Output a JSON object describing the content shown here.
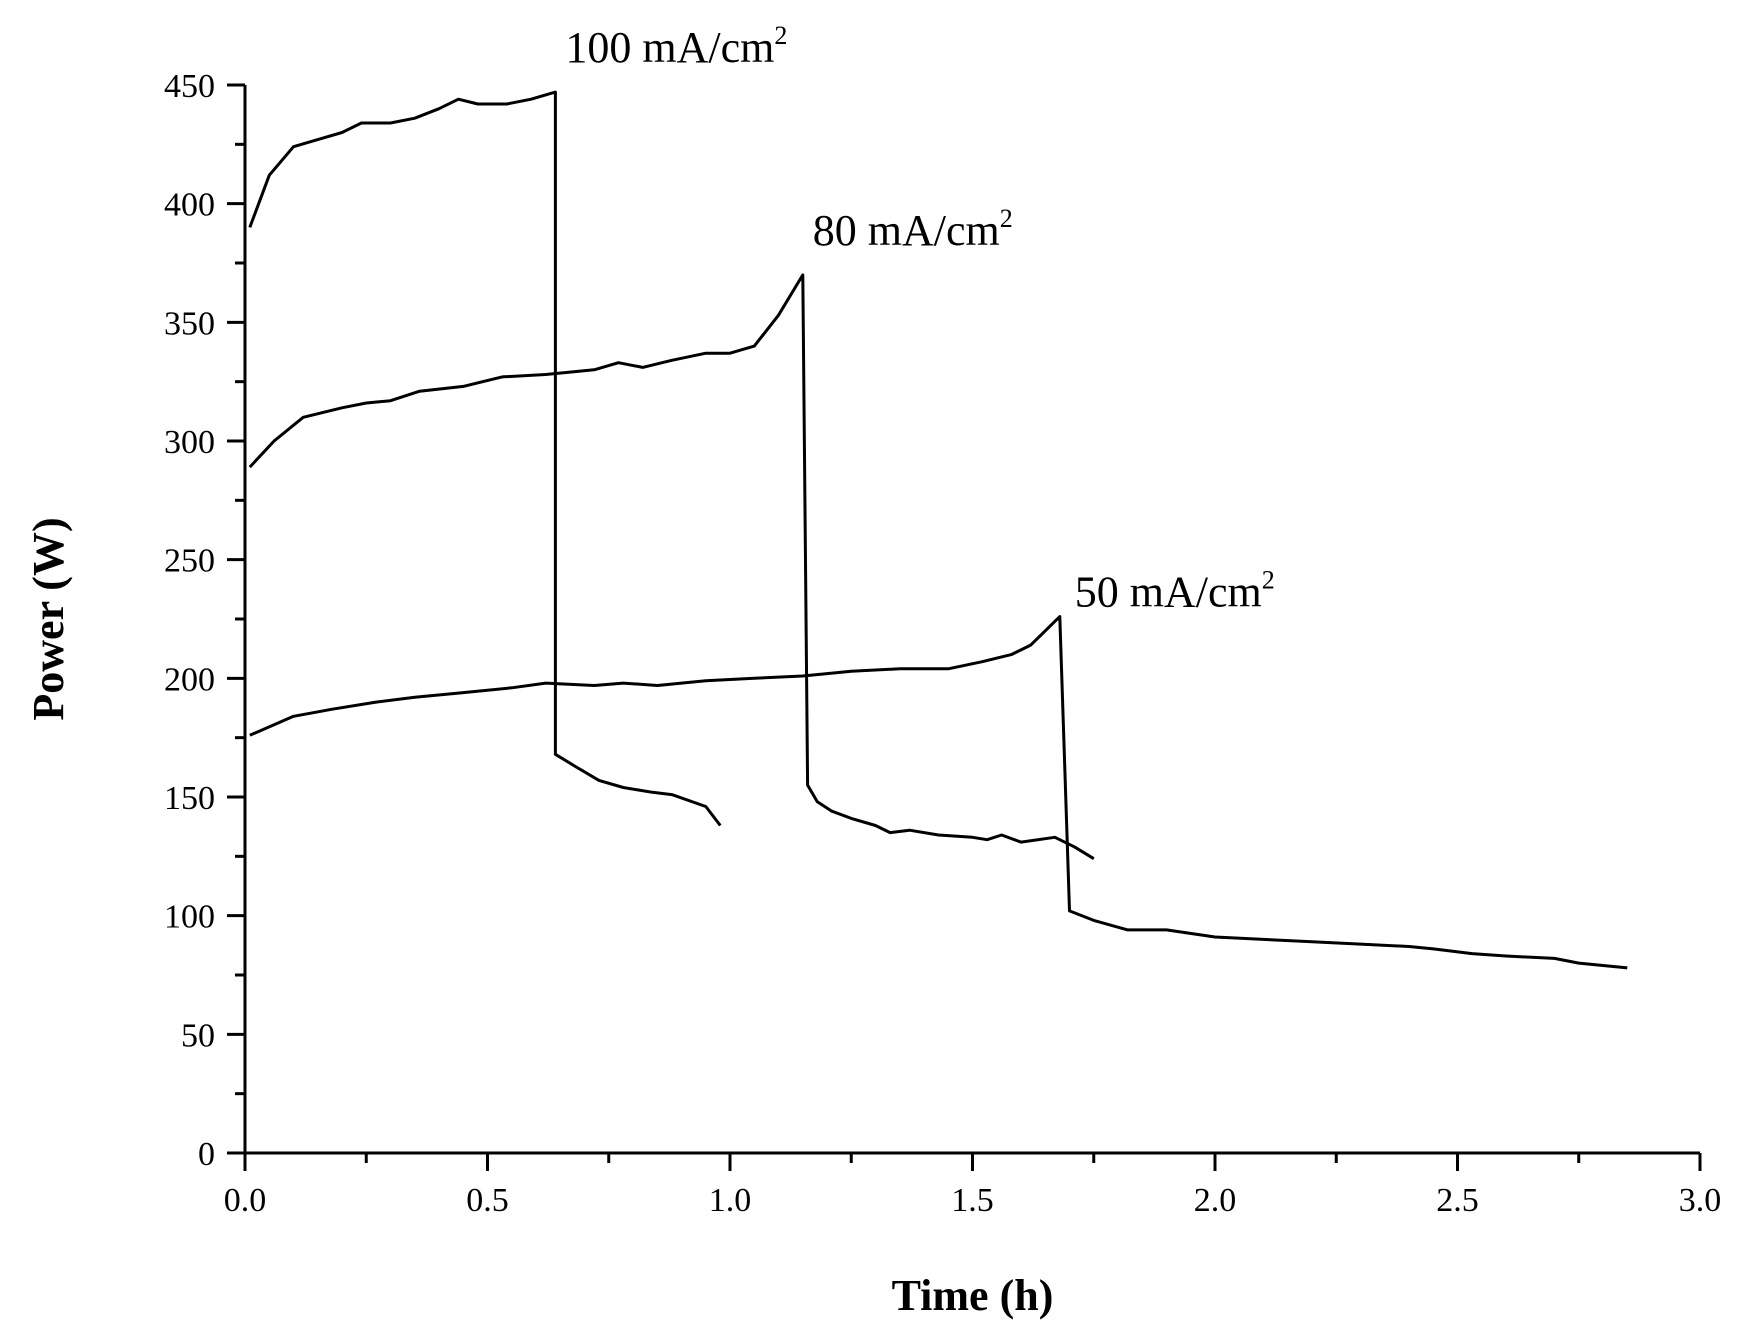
{
  "chart_data": {
    "type": "line",
    "title": "",
    "xlabel": "Time (h)",
    "ylabel": "Power (W)",
    "xlim": [
      0,
      3.0
    ],
    "ylim": [
      0,
      450
    ],
    "xticks": [
      "0.0",
      "0.5",
      "1.0",
      "1.5",
      "2.0",
      "2.5",
      "3.0"
    ],
    "yticks": [
      "0",
      "50",
      "100",
      "150",
      "200",
      "250",
      "300",
      "350",
      "400",
      "450"
    ],
    "grid": false,
    "legend": "none",
    "color": "#000000",
    "series": [
      {
        "name": "100 mA/cm2",
        "label_main": "100 mA/cm",
        "label_sup": "2",
        "points": [
          [
            0.01,
            390
          ],
          [
            0.05,
            412
          ],
          [
            0.1,
            424
          ],
          [
            0.15,
            427
          ],
          [
            0.2,
            430
          ],
          [
            0.24,
            434
          ],
          [
            0.3,
            434
          ],
          [
            0.35,
            436
          ],
          [
            0.4,
            440
          ],
          [
            0.44,
            444
          ],
          [
            0.48,
            442
          ],
          [
            0.54,
            442
          ],
          [
            0.59,
            444
          ],
          [
            0.64,
            447
          ],
          [
            0.64,
            168
          ],
          [
            0.68,
            163
          ],
          [
            0.73,
            157
          ],
          [
            0.78,
            154
          ],
          [
            0.84,
            152
          ],
          [
            0.88,
            151
          ],
          [
            0.95,
            146
          ],
          [
            0.98,
            138
          ]
        ]
      },
      {
        "name": "80 mA/cm2",
        "label_main": "80 mA/cm",
        "label_sup": "2",
        "points": [
          [
            0.01,
            289
          ],
          [
            0.06,
            300
          ],
          [
            0.12,
            310
          ],
          [
            0.2,
            314
          ],
          [
            0.25,
            316
          ],
          [
            0.3,
            317
          ],
          [
            0.36,
            321
          ],
          [
            0.45,
            323
          ],
          [
            0.53,
            327
          ],
          [
            0.62,
            328
          ],
          [
            0.72,
            330
          ],
          [
            0.77,
            333
          ],
          [
            0.82,
            331
          ],
          [
            0.88,
            334
          ],
          [
            0.95,
            337
          ],
          [
            1.0,
            337
          ],
          [
            1.05,
            340
          ],
          [
            1.1,
            353
          ],
          [
            1.15,
            370
          ],
          [
            1.16,
            155
          ],
          [
            1.18,
            148
          ],
          [
            1.21,
            144
          ],
          [
            1.25,
            141
          ],
          [
            1.3,
            138
          ],
          [
            1.33,
            135
          ],
          [
            1.37,
            136
          ],
          [
            1.43,
            134
          ],
          [
            1.5,
            133
          ],
          [
            1.53,
            132
          ],
          [
            1.56,
            134
          ],
          [
            1.6,
            131
          ],
          [
            1.67,
            133
          ],
          [
            1.71,
            129
          ],
          [
            1.75,
            124
          ]
        ]
      },
      {
        "name": "50 mA/cm2",
        "label_main": "50 mA/cm",
        "label_sup": "2",
        "points": [
          [
            0.01,
            176
          ],
          [
            0.1,
            184
          ],
          [
            0.18,
            187
          ],
          [
            0.27,
            190
          ],
          [
            0.35,
            192
          ],
          [
            0.45,
            194
          ],
          [
            0.55,
            196
          ],
          [
            0.62,
            198
          ],
          [
            0.72,
            197
          ],
          [
            0.78,
            198
          ],
          [
            0.85,
            197
          ],
          [
            0.95,
            199
          ],
          [
            1.05,
            200
          ],
          [
            1.15,
            201
          ],
          [
            1.25,
            203
          ],
          [
            1.35,
            204
          ],
          [
            1.45,
            204
          ],
          [
            1.52,
            207
          ],
          [
            1.58,
            210
          ],
          [
            1.62,
            214
          ],
          [
            1.68,
            226
          ],
          [
            1.7,
            102
          ],
          [
            1.75,
            98
          ],
          [
            1.82,
            94
          ],
          [
            1.9,
            94
          ],
          [
            2.0,
            91
          ],
          [
            2.1,
            90
          ],
          [
            2.2,
            89
          ],
          [
            2.3,
            88
          ],
          [
            2.4,
            87
          ],
          [
            2.45,
            86
          ],
          [
            2.53,
            84
          ],
          [
            2.6,
            83
          ],
          [
            2.7,
            82
          ],
          [
            2.75,
            80
          ],
          [
            2.85,
            78
          ]
        ]
      }
    ]
  }
}
